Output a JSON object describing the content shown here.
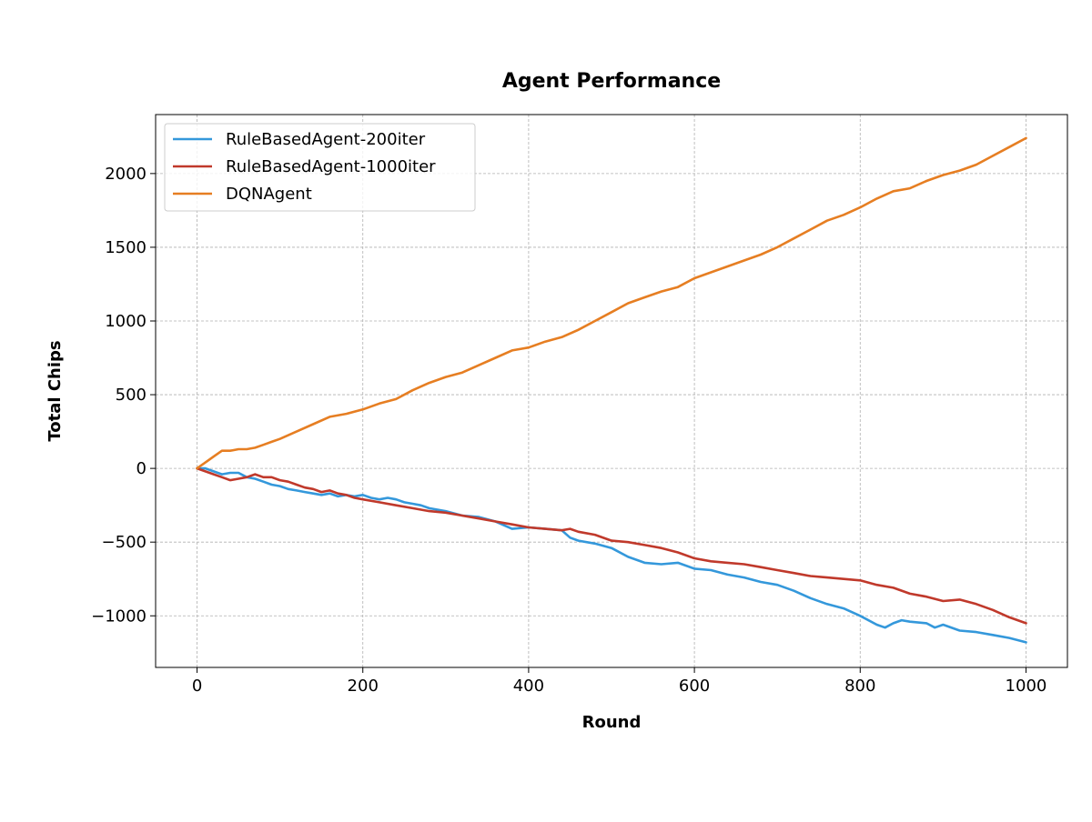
{
  "chart_data": {
    "type": "line",
    "title": "Agent Performance",
    "xlabel": "Round",
    "ylabel": "Total Chips",
    "xlim": [
      -50,
      1050
    ],
    "ylim": [
      -1350,
      2400
    ],
    "xticks": [
      0,
      200,
      400,
      600,
      800,
      1000
    ],
    "yticks": [
      -1000,
      -500,
      0,
      500,
      1000,
      1500,
      2000
    ],
    "xtick_labels": [
      "0",
      "200",
      "400",
      "600",
      "800",
      "1000"
    ],
    "ytick_labels": [
      "−1000",
      "−500",
      "0",
      "500",
      "1000",
      "1500",
      "2000"
    ],
    "grid": true,
    "legend_position": "top-left",
    "series": [
      {
        "name": "RuleBasedAgent-200iter",
        "color": "#3498db",
        "x": [
          0,
          10,
          20,
          30,
          40,
          50,
          60,
          70,
          80,
          90,
          100,
          110,
          120,
          130,
          140,
          150,
          160,
          170,
          180,
          190,
          200,
          210,
          220,
          230,
          240,
          250,
          260,
          270,
          280,
          290,
          300,
          320,
          340,
          360,
          380,
          400,
          420,
          440,
          450,
          460,
          480,
          500,
          520,
          540,
          560,
          580,
          600,
          620,
          640,
          660,
          680,
          700,
          720,
          740,
          760,
          780,
          800,
          820,
          830,
          840,
          850,
          860,
          880,
          890,
          900,
          920,
          940,
          960,
          980,
          1000
        ],
        "y": [
          0,
          0,
          -20,
          -40,
          -30,
          -30,
          -60,
          -70,
          -90,
          -110,
          -120,
          -140,
          -150,
          -160,
          -170,
          -180,
          -170,
          -190,
          -180,
          -190,
          -180,
          -200,
          -210,
          -200,
          -210,
          -230,
          -240,
          -250,
          -270,
          -280,
          -290,
          -320,
          -330,
          -360,
          -410,
          -400,
          -410,
          -420,
          -470,
          -490,
          -510,
          -540,
          -600,
          -640,
          -650,
          -640,
          -680,
          -690,
          -720,
          -740,
          -770,
          -790,
          -830,
          -880,
          -920,
          -950,
          -1000,
          -1060,
          -1080,
          -1050,
          -1030,
          -1040,
          -1050,
          -1080,
          -1060,
          -1100,
          -1110,
          -1130,
          -1150,
          -1180
        ]
      },
      {
        "name": "RuleBasedAgent-1000iter",
        "color": "#c0392b",
        "x": [
          0,
          10,
          20,
          30,
          40,
          50,
          60,
          70,
          80,
          90,
          100,
          110,
          120,
          130,
          140,
          150,
          160,
          170,
          180,
          190,
          200,
          220,
          240,
          260,
          280,
          300,
          320,
          340,
          360,
          380,
          400,
          420,
          440,
          450,
          460,
          480,
          500,
          520,
          540,
          560,
          580,
          600,
          620,
          640,
          660,
          680,
          700,
          720,
          740,
          760,
          780,
          800,
          820,
          840,
          860,
          880,
          900,
          920,
          940,
          960,
          980,
          1000
        ],
        "y": [
          0,
          -20,
          -40,
          -60,
          -80,
          -70,
          -60,
          -40,
          -60,
          -60,
          -80,
          -90,
          -110,
          -130,
          -140,
          -160,
          -150,
          -170,
          -180,
          -200,
          -210,
          -230,
          -250,
          -270,
          -290,
          -300,
          -320,
          -340,
          -360,
          -380,
          -400,
          -410,
          -420,
          -410,
          -430,
          -450,
          -490,
          -500,
          -520,
          -540,
          -570,
          -610,
          -630,
          -640,
          -650,
          -670,
          -690,
          -710,
          -730,
          -740,
          -750,
          -760,
          -790,
          -810,
          -850,
          -870,
          -900,
          -890,
          -920,
          -960,
          -1010,
          -1050
        ]
      },
      {
        "name": "DQNAgent",
        "color": "#e67e22",
        "x": [
          0,
          10,
          20,
          30,
          40,
          50,
          60,
          70,
          80,
          90,
          100,
          120,
          140,
          160,
          180,
          200,
          220,
          240,
          260,
          280,
          300,
          320,
          340,
          360,
          380,
          400,
          420,
          440,
          460,
          480,
          500,
          520,
          540,
          560,
          580,
          600,
          620,
          640,
          660,
          680,
          700,
          720,
          740,
          760,
          780,
          800,
          820,
          840,
          860,
          880,
          900,
          920,
          940,
          960,
          980,
          1000
        ],
        "y": [
          0,
          40,
          80,
          120,
          120,
          130,
          130,
          140,
          160,
          180,
          200,
          250,
          300,
          350,
          370,
          400,
          440,
          470,
          530,
          580,
          620,
          650,
          700,
          750,
          800,
          820,
          860,
          890,
          940,
          1000,
          1060,
          1120,
          1160,
          1200,
          1230,
          1290,
          1330,
          1370,
          1410,
          1450,
          1500,
          1560,
          1620,
          1680,
          1720,
          1770,
          1830,
          1880,
          1900,
          1950,
          1990,
          2020,
          2060,
          2120,
          2180,
          2240
        ]
      }
    ]
  }
}
